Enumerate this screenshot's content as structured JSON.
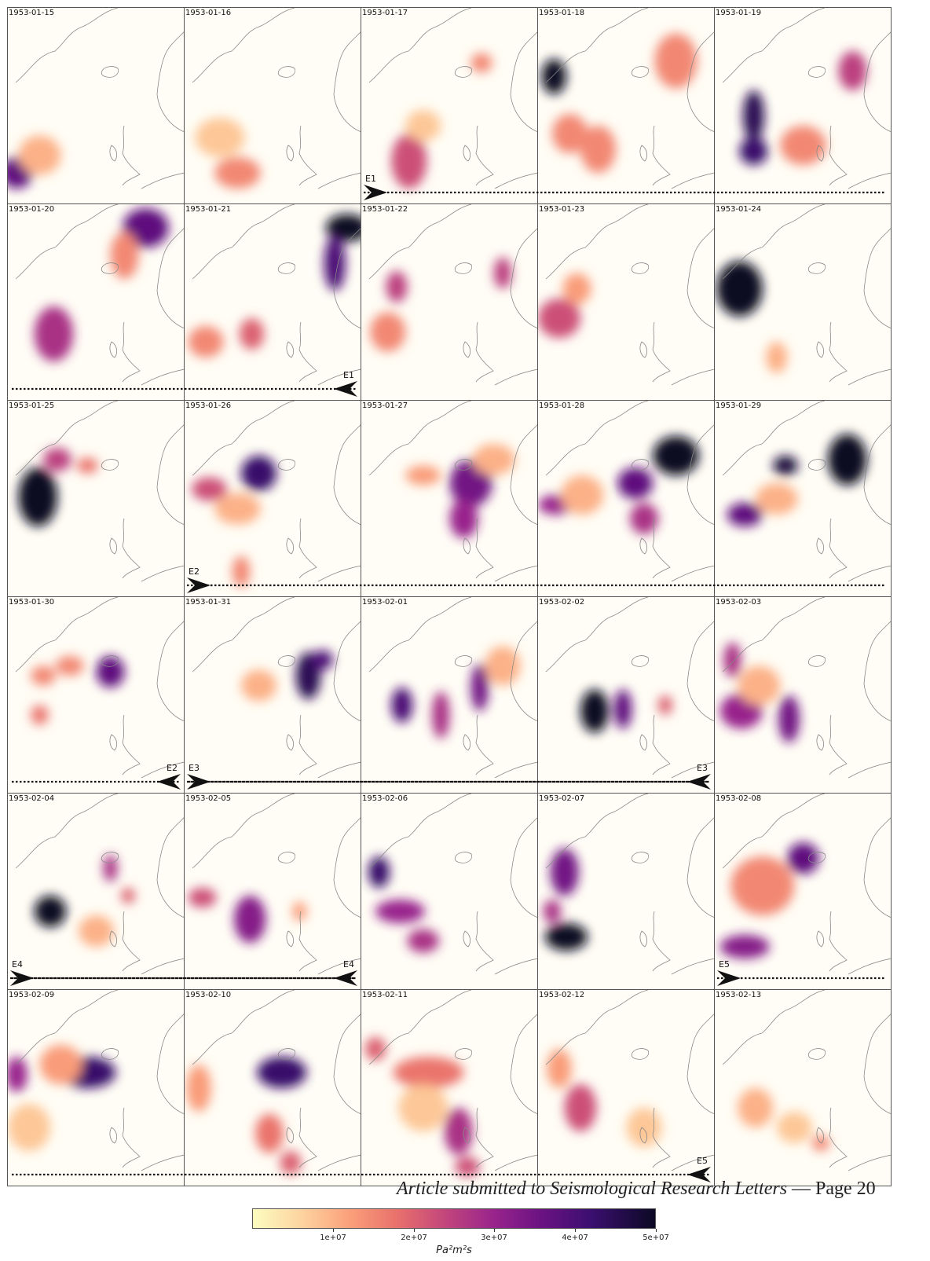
{
  "figure": {
    "panels": [
      {
        "date": "1953-01-15",
        "blobs": [
          [
            0.05,
            0.84,
            0.09,
            0.08,
            0.75
          ],
          [
            0.18,
            0.75,
            0.12,
            0.1,
            0.2
          ]
        ]
      },
      {
        "date": "1953-01-16",
        "blobs": [
          [
            0.3,
            0.84,
            0.13,
            0.08,
            0.3
          ],
          [
            0.2,
            0.66,
            0.14,
            0.1,
            0.15
          ]
        ]
      },
      {
        "date": "1953-01-17",
        "blobs": [
          [
            0.27,
            0.78,
            0.1,
            0.14,
            0.45
          ],
          [
            0.35,
            0.6,
            0.1,
            0.08,
            0.15
          ],
          [
            0.68,
            0.28,
            0.06,
            0.05,
            0.3
          ]
        ]
      },
      {
        "date": "1953-01-18",
        "blobs": [
          [
            0.09,
            0.35,
            0.07,
            0.09,
            1.0
          ],
          [
            0.18,
            0.64,
            0.1,
            0.1,
            0.3
          ],
          [
            0.34,
            0.72,
            0.1,
            0.12,
            0.3
          ],
          [
            0.78,
            0.27,
            0.12,
            0.14,
            0.3
          ]
        ]
      },
      {
        "date": "1953-01-19",
        "blobs": [
          [
            0.22,
            0.55,
            0.06,
            0.13,
            0.9
          ],
          [
            0.22,
            0.73,
            0.08,
            0.07,
            0.85
          ],
          [
            0.78,
            0.32,
            0.08,
            0.1,
            0.5
          ],
          [
            0.5,
            0.7,
            0.13,
            0.1,
            0.3
          ]
        ]
      },
      {
        "date": "1953-01-20",
        "blobs": [
          [
            0.26,
            0.66,
            0.11,
            0.14,
            0.55
          ],
          [
            0.78,
            0.12,
            0.13,
            0.1,
            0.75
          ],
          [
            0.66,
            0.26,
            0.08,
            0.12,
            0.3
          ]
        ]
      },
      {
        "date": "1953-01-21",
        "blobs": [
          [
            0.92,
            0.12,
            0.12,
            0.07,
            1.0
          ],
          [
            0.85,
            0.3,
            0.06,
            0.14,
            0.8
          ],
          [
            0.38,
            0.66,
            0.07,
            0.08,
            0.4
          ],
          [
            0.12,
            0.7,
            0.1,
            0.08,
            0.3
          ]
        ]
      },
      {
        "date": "1953-01-22",
        "blobs": [
          [
            0.2,
            0.42,
            0.06,
            0.08,
            0.5
          ],
          [
            0.15,
            0.65,
            0.1,
            0.1,
            0.3
          ],
          [
            0.8,
            0.35,
            0.05,
            0.08,
            0.5
          ]
        ]
      },
      {
        "date": "1953-01-23",
        "blobs": [
          [
            0.12,
            0.58,
            0.12,
            0.1,
            0.45
          ],
          [
            0.22,
            0.43,
            0.08,
            0.08,
            0.25
          ]
        ]
      },
      {
        "date": "1953-01-24",
        "blobs": [
          [
            0.14,
            0.43,
            0.13,
            0.14,
            1.0
          ],
          [
            0.35,
            0.78,
            0.06,
            0.08,
            0.2
          ]
        ]
      },
      {
        "date": "1953-01-25",
        "blobs": [
          [
            0.17,
            0.49,
            0.11,
            0.15,
            1.0
          ],
          [
            0.28,
            0.3,
            0.08,
            0.06,
            0.5
          ],
          [
            0.45,
            0.33,
            0.06,
            0.04,
            0.35
          ]
        ]
      },
      {
        "date": "1953-01-26",
        "blobs": [
          [
            0.42,
            0.37,
            0.1,
            0.09,
            0.85
          ],
          [
            0.14,
            0.45,
            0.1,
            0.06,
            0.45
          ],
          [
            0.3,
            0.55,
            0.13,
            0.08,
            0.2
          ],
          [
            0.32,
            0.87,
            0.05,
            0.08,
            0.3
          ]
        ]
      },
      {
        "date": "1953-01-27",
        "blobs": [
          [
            0.62,
            0.42,
            0.12,
            0.12,
            0.7
          ],
          [
            0.58,
            0.6,
            0.08,
            0.1,
            0.6
          ],
          [
            0.35,
            0.38,
            0.1,
            0.05,
            0.25
          ],
          [
            0.75,
            0.3,
            0.12,
            0.08,
            0.2
          ]
        ]
      },
      {
        "date": "1953-01-28",
        "blobs": [
          [
            0.78,
            0.28,
            0.13,
            0.1,
            1.0
          ],
          [
            0.55,
            0.42,
            0.1,
            0.08,
            0.75
          ],
          [
            0.1,
            0.53,
            0.1,
            0.05,
            0.6
          ],
          [
            0.6,
            0.6,
            0.08,
            0.08,
            0.55
          ],
          [
            0.25,
            0.48,
            0.12,
            0.1,
            0.2
          ]
        ]
      },
      {
        "date": "1953-01-29",
        "blobs": [
          [
            0.75,
            0.3,
            0.11,
            0.13,
            1.0
          ],
          [
            0.4,
            0.33,
            0.07,
            0.05,
            0.95
          ],
          [
            0.17,
            0.58,
            0.1,
            0.06,
            0.75
          ],
          [
            0.35,
            0.5,
            0.12,
            0.08,
            0.2
          ]
        ]
      },
      {
        "date": "1953-01-30",
        "blobs": [
          [
            0.58,
            0.38,
            0.08,
            0.08,
            0.75
          ],
          [
            0.18,
            0.6,
            0.05,
            0.05,
            0.35
          ],
          [
            0.35,
            0.35,
            0.08,
            0.05,
            0.3
          ],
          [
            0.2,
            0.4,
            0.07,
            0.05,
            0.3
          ]
        ]
      },
      {
        "date": "1953-01-31",
        "blobs": [
          [
            0.7,
            0.4,
            0.07,
            0.12,
            0.9
          ],
          [
            0.78,
            0.32,
            0.06,
            0.05,
            0.8
          ],
          [
            0.42,
            0.45,
            0.1,
            0.08,
            0.2
          ]
        ]
      },
      {
        "date": "1953-02-01",
        "blobs": [
          [
            0.23,
            0.55,
            0.06,
            0.09,
            0.8
          ],
          [
            0.45,
            0.6,
            0.05,
            0.12,
            0.55
          ],
          [
            0.67,
            0.46,
            0.05,
            0.12,
            0.7
          ],
          [
            0.8,
            0.35,
            0.1,
            0.1,
            0.2
          ]
        ]
      },
      {
        "date": "1953-02-02",
        "blobs": [
          [
            0.32,
            0.58,
            0.08,
            0.11,
            1.0
          ],
          [
            0.48,
            0.57,
            0.05,
            0.1,
            0.75
          ],
          [
            0.72,
            0.55,
            0.04,
            0.05,
            0.4
          ]
        ]
      },
      {
        "date": "1953-02-03",
        "blobs": [
          [
            0.1,
            0.32,
            0.05,
            0.09,
            0.55
          ],
          [
            0.15,
            0.58,
            0.12,
            0.09,
            0.6
          ],
          [
            0.42,
            0.62,
            0.06,
            0.12,
            0.7
          ],
          [
            0.25,
            0.45,
            0.12,
            0.1,
            0.2
          ]
        ]
      },
      {
        "date": "1953-02-04",
        "blobs": [
          [
            0.24,
            0.6,
            0.09,
            0.08,
            1.0
          ],
          [
            0.58,
            0.38,
            0.04,
            0.07,
            0.55
          ],
          [
            0.5,
            0.7,
            0.1,
            0.08,
            0.2
          ],
          [
            0.68,
            0.52,
            0.04,
            0.04,
            0.4
          ]
        ]
      },
      {
        "date": "1953-02-05",
        "blobs": [
          [
            0.37,
            0.64,
            0.09,
            0.12,
            0.65
          ],
          [
            0.1,
            0.53,
            0.08,
            0.05,
            0.45
          ],
          [
            0.65,
            0.6,
            0.04,
            0.05,
            0.25
          ]
        ]
      },
      {
        "date": "1953-02-06",
        "blobs": [
          [
            0.1,
            0.4,
            0.06,
            0.08,
            0.85
          ],
          [
            0.22,
            0.6,
            0.14,
            0.06,
            0.6
          ],
          [
            0.35,
            0.75,
            0.09,
            0.06,
            0.55
          ]
        ]
      },
      {
        "date": "1953-02-07",
        "blobs": [
          [
            0.15,
            0.4,
            0.08,
            0.12,
            0.7
          ],
          [
            0.16,
            0.73,
            0.12,
            0.07,
            1.0
          ],
          [
            0.08,
            0.6,
            0.05,
            0.06,
            0.55
          ]
        ]
      },
      {
        "date": "1953-02-08",
        "blobs": [
          [
            0.5,
            0.33,
            0.09,
            0.08,
            0.75
          ],
          [
            0.27,
            0.47,
            0.18,
            0.15,
            0.3
          ],
          [
            0.17,
            0.78,
            0.14,
            0.06,
            0.65
          ]
        ]
      },
      {
        "date": "1953-02-09",
        "blobs": [
          [
            0.45,
            0.42,
            0.16,
            0.08,
            0.85
          ],
          [
            0.05,
            0.43,
            0.06,
            0.09,
            0.6
          ],
          [
            0.3,
            0.38,
            0.12,
            0.1,
            0.25
          ],
          [
            0.12,
            0.7,
            0.12,
            0.12,
            0.15
          ]
        ]
      },
      {
        "date": "1953-02-10",
        "blobs": [
          [
            0.55,
            0.42,
            0.14,
            0.08,
            0.85
          ],
          [
            0.08,
            0.5,
            0.07,
            0.12,
            0.25
          ],
          [
            0.48,
            0.73,
            0.08,
            0.1,
            0.35
          ],
          [
            0.6,
            0.88,
            0.06,
            0.06,
            0.4
          ]
        ]
      },
      {
        "date": "1953-02-11",
        "blobs": [
          [
            0.38,
            0.42,
            0.2,
            0.08,
            0.35
          ],
          [
            0.55,
            0.72,
            0.08,
            0.12,
            0.55
          ],
          [
            0.6,
            0.9,
            0.07,
            0.05,
            0.45
          ],
          [
            0.08,
            0.3,
            0.06,
            0.06,
            0.4
          ],
          [
            0.35,
            0.6,
            0.14,
            0.12,
            0.15
          ]
        ]
      },
      {
        "date": "1953-02-12",
        "blobs": [
          [
            0.24,
            0.6,
            0.09,
            0.12,
            0.45
          ],
          [
            0.12,
            0.4,
            0.07,
            0.1,
            0.25
          ],
          [
            0.6,
            0.7,
            0.1,
            0.1,
            0.15
          ]
        ]
      },
      {
        "date": "1953-02-13",
        "blobs": [
          [
            0.23,
            0.6,
            0.1,
            0.1,
            0.2
          ],
          [
            0.45,
            0.7,
            0.1,
            0.08,
            0.15
          ],
          [
            0.6,
            0.78,
            0.05,
            0.04,
            0.3
          ]
        ]
      }
    ],
    "event_lines": [
      {
        "label": "E1",
        "row": 0,
        "head_panel": 2,
        "end_panel": 4,
        "direction": "right"
      },
      {
        "label": "E1",
        "row": 1,
        "head_panel": 1,
        "end_panel": 0,
        "direction": "left"
      },
      {
        "label": "E2",
        "row": 2,
        "head_panel": 1,
        "end_panel": 4,
        "direction": "right"
      },
      {
        "label": "E2",
        "row": 3,
        "head_panel": 0,
        "end_panel": 0,
        "direction": "left"
      },
      {
        "label": "E3",
        "row": 3,
        "head_panel": 1,
        "end_panel": 3,
        "direction": "right"
      },
      {
        "label": "E3",
        "row": 3,
        "head_panel": 3,
        "end_panel": 1,
        "direction": "left"
      },
      {
        "label": "E4",
        "row": 4,
        "head_panel": 0,
        "end_panel": 1,
        "direction": "right"
      },
      {
        "label": "E4",
        "row": 4,
        "head_panel": 1,
        "end_panel": 0,
        "direction": "left"
      },
      {
        "label": "E5",
        "row": 4,
        "head_panel": 4,
        "end_panel": 4,
        "direction": "right"
      },
      {
        "label": "E5",
        "row": 5,
        "head_panel": 3,
        "end_panel": 0,
        "direction": "left"
      }
    ],
    "colorbar": {
      "ticks": [
        "1e+07",
        "2e+07",
        "3e+07",
        "4e+07",
        "5e+07"
      ],
      "tick_values": [
        10000000,
        20000000,
        30000000,
        40000000,
        50000000
      ],
      "range": [
        0,
        50000000
      ],
      "unit": "Pa²m²s",
      "colormap": "magma_r"
    }
  },
  "footer": {
    "journal_text": "Article submitted to Seismological Research Letters",
    "page_text": " — Page 20"
  },
  "colors": {
    "background": "#fffdf5",
    "coast": "#888888",
    "frame": "#555555"
  }
}
